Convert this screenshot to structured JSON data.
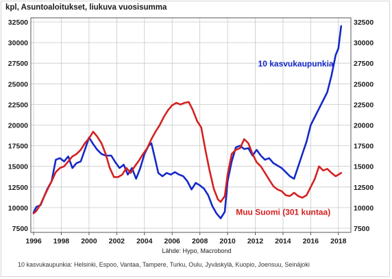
{
  "chart_data": {
    "type": "line",
    "title": "kpl, Asuntoaloitukset, liukuva vuosisumma",
    "source": "Lähde: Hypo, Macrobond",
    "footnote": "10 kasvukaupunkia: Helsinki, Espoo, Vantaa, Tampere, Turku, Oulu, Jyväskylä, Kuopio, Joensuu, Seinäjoki",
    "xlim": [
      1995.8,
      2018.9
    ],
    "ylim": [
      7000,
      33000
    ],
    "x_ticks": [
      "1996",
      "1998",
      "2000",
      "2002",
      "2004",
      "2006",
      "2008",
      "2010",
      "2012",
      "2014",
      "2016",
      "2018"
    ],
    "y_ticks": [
      "7500",
      "10000",
      "12500",
      "15000",
      "17500",
      "20000",
      "22500",
      "25000",
      "27500",
      "30000",
      "32500"
    ],
    "grid": true,
    "legend": "inline labels",
    "series": [
      {
        "name": "10 kasvukaupunkia",
        "color": "#1428c8",
        "points": [
          [
            1996.0,
            9400
          ],
          [
            1996.2,
            10100
          ],
          [
            1996.5,
            10300
          ],
          [
            1996.8,
            11500
          ],
          [
            1997.0,
            12300
          ],
          [
            1997.3,
            13200
          ],
          [
            1997.6,
            15800
          ],
          [
            1997.9,
            16000
          ],
          [
            1998.2,
            15600
          ],
          [
            1998.5,
            16200
          ],
          [
            1998.8,
            14800
          ],
          [
            1999.1,
            15400
          ],
          [
            1999.4,
            15600
          ],
          [
            1999.7,
            17000
          ],
          [
            2000.0,
            18500
          ],
          [
            2000.3,
            17700
          ],
          [
            2000.6,
            17000
          ],
          [
            2000.9,
            16500
          ],
          [
            2001.2,
            16300
          ],
          [
            2001.6,
            16300
          ],
          [
            2001.9,
            15500
          ],
          [
            2002.2,
            14800
          ],
          [
            2002.5,
            15200
          ],
          [
            2002.8,
            14000
          ],
          [
            2003.1,
            14800
          ],
          [
            2003.4,
            13500
          ],
          [
            2003.7,
            14800
          ],
          [
            2004.0,
            16500
          ],
          [
            2004.3,
            17500
          ],
          [
            2004.5,
            17800
          ],
          [
            2004.8,
            15700
          ],
          [
            2005.0,
            14200
          ],
          [
            2005.3,
            13800
          ],
          [
            2005.6,
            14200
          ],
          [
            2005.9,
            14000
          ],
          [
            2006.2,
            14300
          ],
          [
            2006.5,
            14000
          ],
          [
            2006.8,
            13800
          ],
          [
            2007.1,
            13200
          ],
          [
            2007.4,
            12200
          ],
          [
            2007.7,
            13000
          ],
          [
            2008.0,
            12700
          ],
          [
            2008.3,
            12300
          ],
          [
            2008.6,
            11500
          ],
          [
            2008.9,
            10200
          ],
          [
            2009.2,
            9300
          ],
          [
            2009.5,
            8700
          ],
          [
            2009.8,
            9500
          ],
          [
            2010.0,
            13200
          ],
          [
            2010.3,
            15600
          ],
          [
            2010.6,
            17300
          ],
          [
            2010.9,
            17500
          ],
          [
            2011.2,
            17100
          ],
          [
            2011.5,
            17200
          ],
          [
            2011.8,
            16300
          ],
          [
            2012.1,
            17000
          ],
          [
            2012.4,
            16300
          ],
          [
            2012.7,
            15800
          ],
          [
            2013.0,
            16000
          ],
          [
            2013.3,
            15400
          ],
          [
            2013.6,
            15100
          ],
          [
            2013.9,
            14800
          ],
          [
            2014.2,
            14300
          ],
          [
            2014.5,
            13800
          ],
          [
            2014.8,
            13500
          ],
          [
            2015.1,
            15000
          ],
          [
            2015.4,
            16500
          ],
          [
            2015.7,
            18000
          ],
          [
            2016.0,
            20000
          ],
          [
            2016.3,
            21000
          ],
          [
            2016.6,
            22000
          ],
          [
            2016.9,
            23000
          ],
          [
            2017.2,
            24000
          ],
          [
            2017.5,
            26000
          ],
          [
            2017.8,
            28500
          ],
          [
            2018.0,
            29300
          ],
          [
            2018.2,
            32000
          ]
        ]
      },
      {
        "name": "Muu Suomi (301 kuntaa)",
        "color": "#d42020",
        "points": [
          [
            1996.0,
            9300
          ],
          [
            1996.2,
            9600
          ],
          [
            1996.5,
            10400
          ],
          [
            1996.8,
            11500
          ],
          [
            1997.0,
            12200
          ],
          [
            1997.3,
            13200
          ],
          [
            1997.6,
            14300
          ],
          [
            1997.9,
            14800
          ],
          [
            1998.2,
            15000
          ],
          [
            1998.5,
            15600
          ],
          [
            1998.8,
            16200
          ],
          [
            1999.1,
            16500
          ],
          [
            1999.4,
            17000
          ],
          [
            1999.7,
            17800
          ],
          [
            2000.0,
            18400
          ],
          [
            2000.3,
            19200
          ],
          [
            2000.6,
            18600
          ],
          [
            2000.9,
            17800
          ],
          [
            2001.2,
            16500
          ],
          [
            2001.5,
            14800
          ],
          [
            2001.8,
            13700
          ],
          [
            2002.1,
            13700
          ],
          [
            2002.4,
            14000
          ],
          [
            2002.7,
            14800
          ],
          [
            2003.0,
            14200
          ],
          [
            2003.3,
            15000
          ],
          [
            2003.6,
            15700
          ],
          [
            2003.9,
            16500
          ],
          [
            2004.2,
            17200
          ],
          [
            2004.5,
            18300
          ],
          [
            2004.8,
            19200
          ],
          [
            2005.1,
            20000
          ],
          [
            2005.4,
            21000
          ],
          [
            2005.7,
            21800
          ],
          [
            2006.0,
            22400
          ],
          [
            2006.3,
            22700
          ],
          [
            2006.6,
            22500
          ],
          [
            2006.9,
            22700
          ],
          [
            2007.2,
            22800
          ],
          [
            2007.5,
            21800
          ],
          [
            2007.8,
            20500
          ],
          [
            2008.1,
            19700
          ],
          [
            2008.4,
            17000
          ],
          [
            2008.7,
            14500
          ],
          [
            2009.0,
            12300
          ],
          [
            2009.3,
            11000
          ],
          [
            2009.5,
            10700
          ],
          [
            2009.8,
            11400
          ],
          [
            2010.0,
            14000
          ],
          [
            2010.3,
            16500
          ],
          [
            2010.6,
            17000
          ],
          [
            2010.9,
            17200
          ],
          [
            2011.2,
            18300
          ],
          [
            2011.5,
            17800
          ],
          [
            2011.8,
            16500
          ],
          [
            2012.1,
            15500
          ],
          [
            2012.4,
            15000
          ],
          [
            2012.7,
            14200
          ],
          [
            2013.0,
            13400
          ],
          [
            2013.3,
            12600
          ],
          [
            2013.6,
            12200
          ],
          [
            2013.9,
            12000
          ],
          [
            2014.2,
            11500
          ],
          [
            2014.5,
            11400
          ],
          [
            2014.8,
            11800
          ],
          [
            2015.1,
            11400
          ],
          [
            2015.4,
            11200
          ],
          [
            2015.7,
            11500
          ],
          [
            2016.0,
            12500
          ],
          [
            2016.3,
            13500
          ],
          [
            2016.6,
            15000
          ],
          [
            2016.9,
            14500
          ],
          [
            2017.2,
            14700
          ],
          [
            2017.5,
            14200
          ],
          [
            2017.8,
            13800
          ],
          [
            2018.0,
            14000
          ],
          [
            2018.2,
            14200
          ]
        ]
      }
    ],
    "annotations": [
      {
        "text": "10 kasvukaupunkia",
        "x": 2012.2,
        "y": 27100,
        "color": "#1428c8"
      },
      {
        "text": "Muu Suomi (301 kuntaa)",
        "x": 2010.6,
        "y": 9100,
        "color": "#d42020"
      }
    ]
  }
}
